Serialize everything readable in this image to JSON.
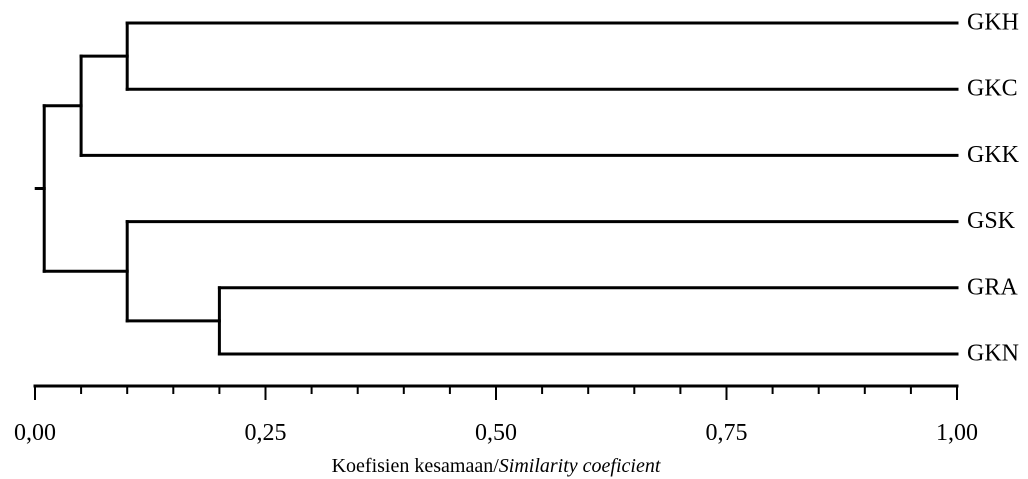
{
  "chart_data": {
    "type": "dendrogram",
    "leaves": [
      "GKH",
      "GKC",
      "GKK",
      "GSK",
      "GRA",
      "GKN"
    ],
    "merges": [
      {
        "left": "GKH",
        "right": "GKC",
        "height": 0.1
      },
      {
        "left": [
          "GKH",
          "GKC"
        ],
        "right": "GKK",
        "height": 0.05
      },
      {
        "left": "GRA",
        "right": "GKN",
        "height": 0.2
      },
      {
        "left": "GSK",
        "right": [
          "GRA",
          "GKN"
        ],
        "height": 0.1
      },
      {
        "left": [
          "GKH",
          "GKC",
          "GKK"
        ],
        "right": [
          "GSK",
          "GRA",
          "GKN"
        ],
        "height": 0.01
      }
    ],
    "x_axis": {
      "range": [
        0,
        1
      ],
      "major_ticks": [
        0,
        0.25,
        0.5,
        0.75,
        1
      ],
      "minor_step": 0.05,
      "tick_labels": [
        "0,00",
        "0,25",
        "0,50",
        "0,75",
        "1,00"
      ],
      "label_plain": "Koefisien kesamaan/",
      "label_italic": "Similarity coeficient"
    }
  }
}
